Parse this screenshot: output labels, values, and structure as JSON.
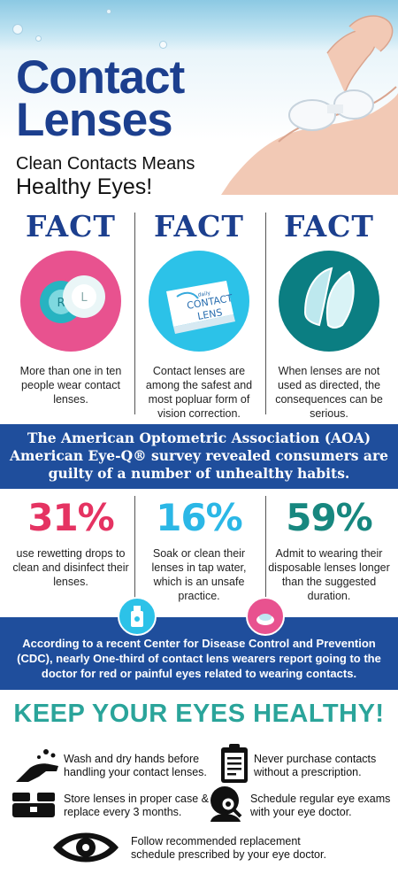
{
  "hero": {
    "title_line1": "Contact",
    "title_line2": "Lenses",
    "subtitle_line1": "Clean Contacts Means",
    "subtitle_line2": "Healthy Eyes!"
  },
  "facts": [
    {
      "title": "FACT",
      "text": "More than one in ten people wear contact lenses.",
      "color": "#e8528f",
      "icon": "lens-case-icon"
    },
    {
      "title": "FACT",
      "text": "Contact lenses are among the safest and most popluar form of vision correction.",
      "color": "#2cc2e8",
      "icon": "contact-lens-box-icon",
      "box_line1": "daily",
      "box_line2": "CONTACT",
      "box_line3": "LENS"
    },
    {
      "title": "FACT",
      "text": "When lenses are not used as directed, the consequences can be serious.",
      "color": "#0b7e82",
      "icon": "lenses-icon"
    }
  ],
  "survey_banner": {
    "line1": "The American Optometric Association (AOA)",
    "line2": "American Eye-Q® survey revealed consumers are",
    "line3": "guilty of a number of unhealthy habits."
  },
  "stats": [
    {
      "value": "31%",
      "text": "use rewetting drops to clean and disinfect their lenses.",
      "color": "#e53362"
    },
    {
      "value": "16%",
      "text": "Soak or clean their lenses in tap water, which is an unsafe practice.",
      "color": "#2bb7e6"
    },
    {
      "value": "59%",
      "text": "Admit to wearing their disposable lenses longer than the suggested duration.",
      "color": "#17877f"
    }
  ],
  "cdc_banner": {
    "text": "According to a recent Center for Disease Control and Prevention (CDC), nearly One-third of contact lens wearers report going to the doctor for red or painful eyes related to wearing contacts."
  },
  "keep_title": "KEEP YOUR EYES HEALTHY!",
  "tips": [
    {
      "text": "Wash and dry hands before handling your contact lenses.",
      "icon": "hand-wash-icon"
    },
    {
      "text": "Never purchase contacts without a prescription.",
      "icon": "prescription-clipboard-icon"
    },
    {
      "text": "Store lenses in proper case & replace every 3 months.",
      "icon": "lens-case-icon"
    },
    {
      "text": "Schedule regular eye exams with your eye doctor.",
      "icon": "eye-exam-icon"
    },
    {
      "text": "Follow recommended replacement schedule prescribed by your eye doctor.",
      "icon": "eye-icon"
    }
  ],
  "colors": {
    "navy": "#1c3f8e",
    "banner_blue": "#1f4e9c",
    "teal": "#2aa49a"
  }
}
